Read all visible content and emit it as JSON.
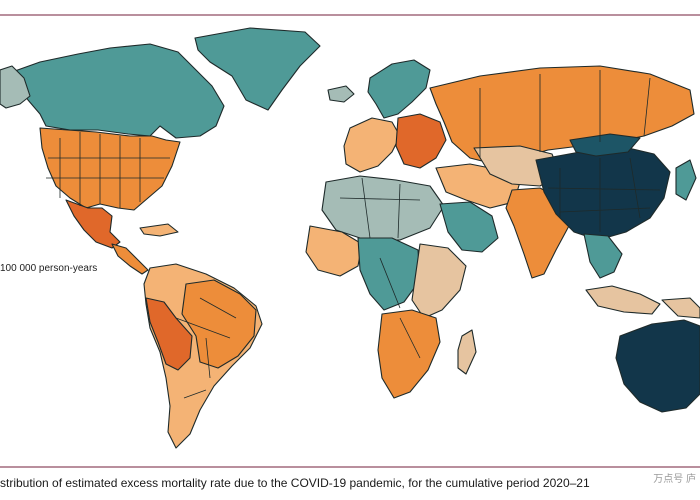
{
  "legend": {
    "unit_label": "100 000 person-years"
  },
  "caption": {
    "text": "stribution of estimated excess mortality rate due to the COVID-19 pandemic, for the cumulative period 2020–21"
  },
  "watermark": {
    "text": "万点号  庐"
  },
  "colors": {
    "teal": "#4f9a97",
    "grey_teal": "#a5bcb6",
    "light_tan": "#e6c4a0",
    "light_orange": "#f4b375",
    "orange": "#ed8d3a",
    "deep_orange": "#e0682a",
    "dark_navy": "#12364a",
    "navy": "#1d5566",
    "background": "#ffffff",
    "rule": "#b98f9d"
  },
  "regions": [
    {
      "name": "greenland",
      "color": "teal"
    },
    {
      "name": "canada",
      "color": "teal"
    },
    {
      "name": "alaska",
      "color": "grey_teal"
    },
    {
      "name": "united-states",
      "color": "orange"
    },
    {
      "name": "mexico",
      "color": "deep_orange"
    },
    {
      "name": "central-america",
      "color": "orange"
    },
    {
      "name": "caribbean",
      "color": "light_orange"
    },
    {
      "name": "south-america",
      "color": "light_orange"
    },
    {
      "name": "peru",
      "color": "deep_orange"
    },
    {
      "name": "brazil",
      "color": "orange"
    },
    {
      "name": "iceland",
      "color": "grey_teal"
    },
    {
      "name": "scandinavia",
      "color": "teal"
    },
    {
      "name": "western-europe",
      "color": "light_orange"
    },
    {
      "name": "eastern-europe",
      "color": "deep_orange"
    },
    {
      "name": "russia",
      "color": "orange"
    },
    {
      "name": "north-africa",
      "color": "grey_teal"
    },
    {
      "name": "west-africa",
      "color": "light_orange"
    },
    {
      "name": "central-africa",
      "color": "teal"
    },
    {
      "name": "east-africa",
      "color": "light_tan"
    },
    {
      "name": "southern-africa",
      "color": "orange"
    },
    {
      "name": "madagascar",
      "color": "light_tan"
    },
    {
      "name": "arabia",
      "color": "teal"
    },
    {
      "name": "middle-east",
      "color": "light_orange"
    },
    {
      "name": "central-asia",
      "color": "light_tan"
    },
    {
      "name": "india",
      "color": "orange"
    },
    {
      "name": "china",
      "color": "dark_navy"
    },
    {
      "name": "mongolia",
      "color": "navy"
    },
    {
      "name": "southeast-asia",
      "color": "teal"
    },
    {
      "name": "japan",
      "color": "teal"
    },
    {
      "name": "indonesia",
      "color": "light_tan"
    },
    {
      "name": "papua",
      "color": "light_tan"
    },
    {
      "name": "australia",
      "color": "dark_navy"
    }
  ]
}
